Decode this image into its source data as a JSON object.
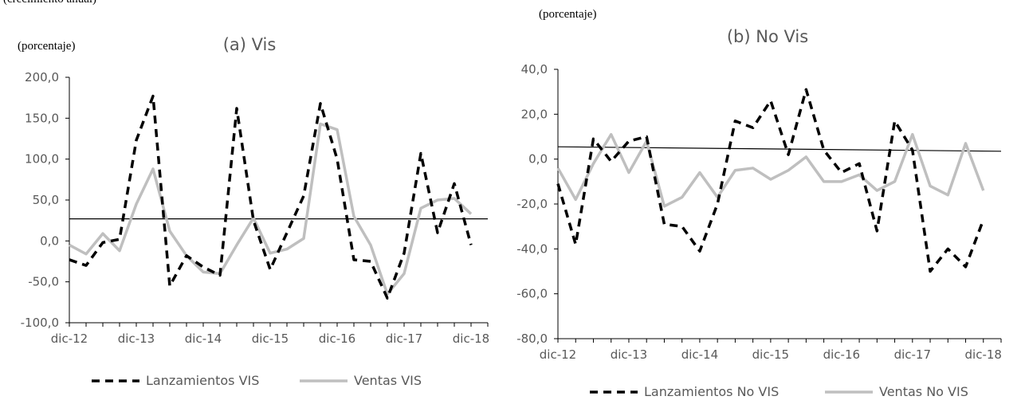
{
  "header_note": "(crecimiento anual)",
  "chart_data": [
    {
      "type": "line",
      "title": "(a) Vis",
      "unit_label": "(porcentaje)",
      "ylim": [
        -100,
        200
      ],
      "yticks": [
        -100,
        -50,
        0,
        50,
        100,
        150,
        200
      ],
      "ytick_labels": [
        "-100,0",
        "-50,0",
        "0,0",
        "50,0",
        "100,0",
        "150,0",
        "200,0"
      ],
      "xlim": [
        0,
        25
      ],
      "xticks": [
        0,
        4,
        8,
        12,
        16,
        20,
        24
      ],
      "xtick_labels": [
        "dic-12",
        "dic-13",
        "dic-14",
        "dic-15",
        "dic-16",
        "dic-17",
        "dic-18"
      ],
      "reference_line": [
        27,
        27
      ],
      "series": [
        {
          "name": "Lanzamientos VIS",
          "style": "dashed",
          "color": "#000000",
          "x": [
            0,
            1,
            2,
            3,
            4,
            5,
            6,
            7,
            8,
            9,
            10,
            11,
            12,
            13,
            14,
            15,
            16,
            17,
            18,
            19,
            20,
            21,
            22,
            23,
            24
          ],
          "values": [
            -23,
            -30,
            -2,
            2,
            123,
            177,
            -55,
            -18,
            -32,
            -42,
            162,
            25,
            -35,
            10,
            55,
            168,
            100,
            -23,
            -25,
            -70,
            -15,
            107,
            10,
            70,
            -5
          ]
        },
        {
          "name": "Ventas VIS",
          "style": "solid",
          "color": "#BFBFBF",
          "x": [
            0,
            1,
            2,
            3,
            4,
            5,
            6,
            7,
            8,
            9,
            10,
            11,
            12,
            13,
            14,
            15,
            16,
            17,
            18,
            19,
            20,
            21,
            22,
            23,
            24
          ],
          "values": [
            -5,
            -16,
            9,
            -12,
            45,
            88,
            12,
            -18,
            -38,
            -40,
            -5,
            28,
            -15,
            -10,
            3,
            143,
            136,
            30,
            -5,
            -65,
            -40,
            40,
            50,
            52,
            33
          ]
        }
      ]
    },
    {
      "type": "line",
      "title": "(b) No Vis",
      "unit_label": "(porcentaje)",
      "ylim": [
        -80,
        40
      ],
      "yticks": [
        -80,
        -60,
        -40,
        -20,
        0,
        20,
        40
      ],
      "ytick_labels": [
        "-80,0",
        "-60,0",
        "-40,0",
        "-20,0",
        "0,0",
        "20,0",
        "40,0"
      ],
      "xlim": [
        0,
        25
      ],
      "xticks": [
        0,
        4,
        8,
        12,
        16,
        20,
        24
      ],
      "xtick_labels": [
        "dic-12",
        "dic-13",
        "dic-14",
        "dic-15",
        "dic-16",
        "dic-17",
        "dic-18"
      ],
      "reference_line": [
        5.5,
        3.5
      ],
      "series": [
        {
          "name": "Lanzamientos No VIS",
          "style": "dashed",
          "color": "#000000",
          "x": [
            0,
            1,
            2,
            3,
            4,
            5,
            6,
            7,
            8,
            9,
            10,
            11,
            12,
            13,
            14,
            15,
            16,
            17,
            18,
            19,
            20,
            21,
            22,
            23,
            24
          ],
          "values": [
            -11,
            -38,
            9,
            -1,
            8,
            10,
            -29,
            -30,
            -41,
            -20,
            17,
            14,
            26,
            2,
            31,
            4,
            -6,
            -2,
            -32,
            17,
            4,
            -50,
            -40,
            -48,
            -27
          ]
        },
        {
          "name": "Ventas No VIS",
          "style": "solid",
          "color": "#BFBFBF",
          "x": [
            0,
            1,
            2,
            3,
            4,
            5,
            6,
            7,
            8,
            9,
            10,
            11,
            12,
            13,
            14,
            15,
            16,
            17,
            18,
            19,
            20,
            21,
            22,
            23,
            24
          ],
          "values": [
            -4,
            -18,
            -2,
            11,
            -6,
            8,
            -21,
            -17,
            -6,
            -17,
            -5,
            -4,
            -9,
            -5,
            1,
            -10,
            -10,
            -7,
            -14,
            -10,
            11,
            -12,
            -16,
            7,
            -14
          ]
        }
      ]
    }
  ]
}
